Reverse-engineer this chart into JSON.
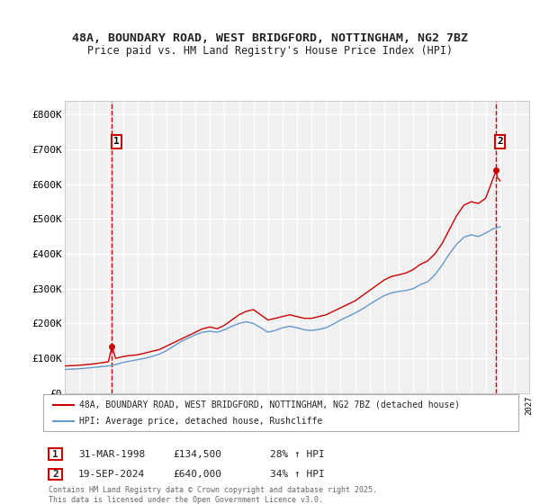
{
  "title1": "48A, BOUNDARY ROAD, WEST BRIDGFORD, NOTTINGHAM, NG2 7BZ",
  "title2": "Price paid vs. HM Land Registry's House Price Index (HPI)",
  "ylabel_ticks": [
    "£0",
    "£100K",
    "£200K",
    "£300K",
    "£400K",
    "£500K",
    "£600K",
    "£700K",
    "£800K"
  ],
  "ytick_values": [
    0,
    100000,
    200000,
    300000,
    400000,
    500000,
    600000,
    700000,
    800000
  ],
  "ylim": [
    0,
    840000
  ],
  "xlim_start": 1995.0,
  "xlim_end": 2027.0,
  "background_color": "#ffffff",
  "plot_bg_color": "#f0f0f0",
  "grid_color": "#ffffff",
  "red_color": "#cc0000",
  "blue_color": "#6699cc",
  "legend_label_red": "48A, BOUNDARY ROAD, WEST BRIDGFORD, NOTTINGHAM, NG2 7BZ (detached house)",
  "legend_label_blue": "HPI: Average price, detached house, Rushcliffe",
  "point1_label": "1",
  "point1_x": 1998.25,
  "point1_y": 134500,
  "point1_date": "31-MAR-1998",
  "point1_price": "£134,500",
  "point1_hpi": "28% ↑ HPI",
  "point2_label": "2",
  "point2_x": 2024.72,
  "point2_y": 640000,
  "point2_date": "19-SEP-2024",
  "point2_price": "£640,000",
  "point2_hpi": "34% ↑ HPI",
  "footer": "Contains HM Land Registry data © Crown copyright and database right 2025.\nThis data is licensed under the Open Government Licence v3.0.",
  "hpi_red_data": [
    [
      1995.0,
      78000
    ],
    [
      1995.5,
      79000
    ],
    [
      1996.0,
      80000
    ],
    [
      1996.5,
      82000
    ],
    [
      1997.0,
      84000
    ],
    [
      1997.5,
      87000
    ],
    [
      1998.0,
      90000
    ],
    [
      1998.25,
      134500
    ],
    [
      1998.5,
      100000
    ],
    [
      1999.0,
      105000
    ],
    [
      1999.5,
      108000
    ],
    [
      2000.0,
      110000
    ],
    [
      2000.5,
      115000
    ],
    [
      2001.0,
      120000
    ],
    [
      2001.5,
      125000
    ],
    [
      2002.0,
      135000
    ],
    [
      2002.5,
      145000
    ],
    [
      2003.0,
      155000
    ],
    [
      2003.5,
      165000
    ],
    [
      2004.0,
      175000
    ],
    [
      2004.5,
      185000
    ],
    [
      2005.0,
      190000
    ],
    [
      2005.5,
      185000
    ],
    [
      2006.0,
      195000
    ],
    [
      2006.5,
      210000
    ],
    [
      2007.0,
      225000
    ],
    [
      2007.5,
      235000
    ],
    [
      2008.0,
      240000
    ],
    [
      2008.5,
      225000
    ],
    [
      2009.0,
      210000
    ],
    [
      2009.5,
      215000
    ],
    [
      2010.0,
      220000
    ],
    [
      2010.5,
      225000
    ],
    [
      2011.0,
      220000
    ],
    [
      2011.5,
      215000
    ],
    [
      2012.0,
      215000
    ],
    [
      2012.5,
      220000
    ],
    [
      2013.0,
      225000
    ],
    [
      2013.5,
      235000
    ],
    [
      2014.0,
      245000
    ],
    [
      2014.5,
      255000
    ],
    [
      2015.0,
      265000
    ],
    [
      2015.5,
      280000
    ],
    [
      2016.0,
      295000
    ],
    [
      2016.5,
      310000
    ],
    [
      2017.0,
      325000
    ],
    [
      2017.5,
      335000
    ],
    [
      2018.0,
      340000
    ],
    [
      2018.5,
      345000
    ],
    [
      2019.0,
      355000
    ],
    [
      2019.5,
      370000
    ],
    [
      2020.0,
      380000
    ],
    [
      2020.5,
      400000
    ],
    [
      2021.0,
      430000
    ],
    [
      2021.5,
      470000
    ],
    [
      2022.0,
      510000
    ],
    [
      2022.5,
      540000
    ],
    [
      2023.0,
      550000
    ],
    [
      2023.5,
      545000
    ],
    [
      2024.0,
      560000
    ],
    [
      2024.72,
      640000
    ],
    [
      2024.8,
      620000
    ],
    [
      2025.0,
      610000
    ]
  ],
  "hpi_blue_data": [
    [
      1995.0,
      68000
    ],
    [
      1995.5,
      69000
    ],
    [
      1996.0,
      70000
    ],
    [
      1996.5,
      72000
    ],
    [
      1997.0,
      74000
    ],
    [
      1997.5,
      76000
    ],
    [
      1998.0,
      78000
    ],
    [
      1998.5,
      82000
    ],
    [
      1999.0,
      88000
    ],
    [
      1999.5,
      92000
    ],
    [
      2000.0,
      96000
    ],
    [
      2000.5,
      100000
    ],
    [
      2001.0,
      105000
    ],
    [
      2001.5,
      112000
    ],
    [
      2002.0,
      122000
    ],
    [
      2002.5,
      135000
    ],
    [
      2003.0,
      148000
    ],
    [
      2003.5,
      158000
    ],
    [
      2004.0,
      168000
    ],
    [
      2004.5,
      175000
    ],
    [
      2005.0,
      178000
    ],
    [
      2005.5,
      175000
    ],
    [
      2006.0,
      182000
    ],
    [
      2006.5,
      192000
    ],
    [
      2007.0,
      200000
    ],
    [
      2007.5,
      205000
    ],
    [
      2008.0,
      200000
    ],
    [
      2008.5,
      188000
    ],
    [
      2009.0,
      175000
    ],
    [
      2009.5,
      180000
    ],
    [
      2010.0,
      188000
    ],
    [
      2010.5,
      192000
    ],
    [
      2011.0,
      188000
    ],
    [
      2011.5,
      182000
    ],
    [
      2012.0,
      180000
    ],
    [
      2012.5,
      183000
    ],
    [
      2013.0,
      188000
    ],
    [
      2013.5,
      198000
    ],
    [
      2014.0,
      210000
    ],
    [
      2014.5,
      220000
    ],
    [
      2015.0,
      230000
    ],
    [
      2015.5,
      242000
    ],
    [
      2016.0,
      255000
    ],
    [
      2016.5,
      268000
    ],
    [
      2017.0,
      280000
    ],
    [
      2017.5,
      288000
    ],
    [
      2018.0,
      292000
    ],
    [
      2018.5,
      295000
    ],
    [
      2019.0,
      300000
    ],
    [
      2019.5,
      312000
    ],
    [
      2020.0,
      320000
    ],
    [
      2020.5,
      340000
    ],
    [
      2021.0,
      368000
    ],
    [
      2021.5,
      400000
    ],
    [
      2022.0,
      428000
    ],
    [
      2022.5,
      448000
    ],
    [
      2023.0,
      455000
    ],
    [
      2023.5,
      450000
    ],
    [
      2024.0,
      460000
    ],
    [
      2024.5,
      472000
    ],
    [
      2025.0,
      478000
    ]
  ]
}
